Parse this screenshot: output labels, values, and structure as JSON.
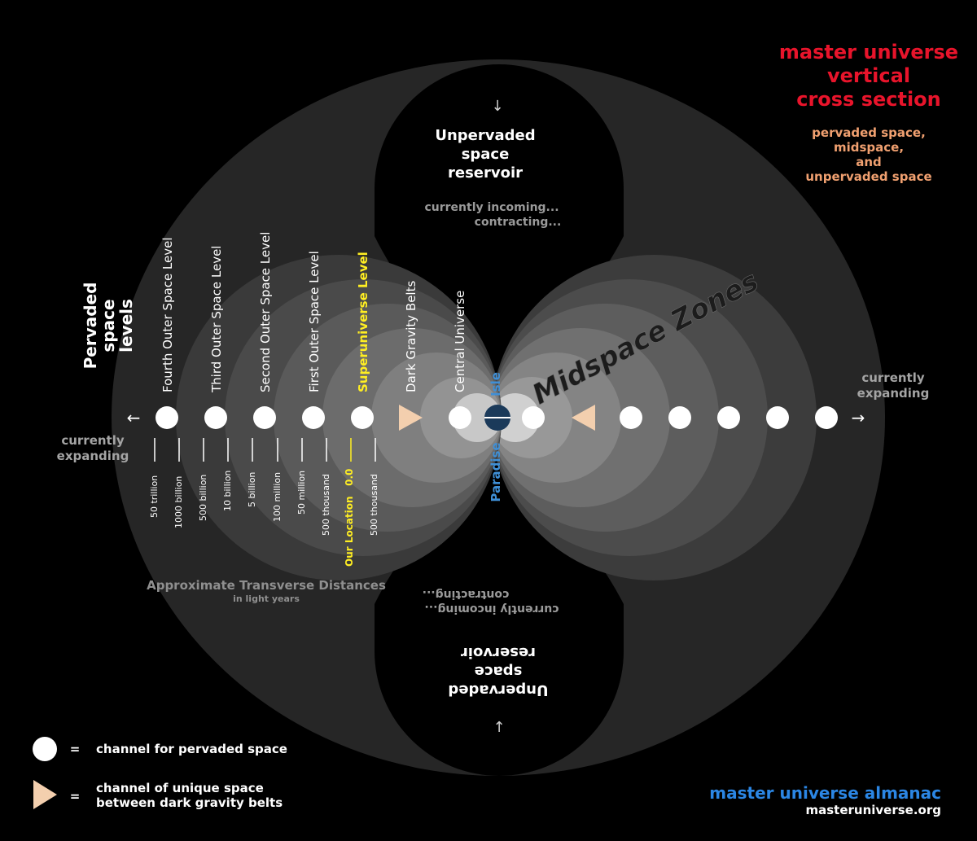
{
  "title": {
    "lines": [
      "master universe",
      "vertical",
      "cross section"
    ],
    "color": "#e8142b"
  },
  "subtitle": {
    "lines": [
      "pervaded space,",
      "midspace,",
      "and",
      "unpervaded space"
    ],
    "color": "#f0a070"
  },
  "pervaded_heading": [
    "Pervaded",
    "space",
    "levels"
  ],
  "levels": [
    "Fourth Outer Space Level",
    "Third Outer Space Level",
    "Second Outer Space Level",
    "First Outer Space Level",
    "Superuniverse Level",
    "Dark Gravity Belts",
    "Central Universe"
  ],
  "superuniverse_color": "#ffee22",
  "isle_label": "Isle",
  "paradise_label": "Paradise",
  "paradise_color": "#3f8fd6",
  "midspace_label": "Midspace Zones",
  "left_expanding": [
    "currently",
    "expanding"
  ],
  "right_expanding": [
    "currently",
    "expanding"
  ],
  "left_arrow_icon": "arrow-left",
  "right_arrow_icon": "arrow-right",
  "distances": [
    "50 trillion",
    "1000 billion",
    "500 billion",
    "10 billion",
    "5 billion",
    "100 million",
    "50 million",
    "500 thousand",
    "500 thousand"
  ],
  "our_location": "Our Location   0.0",
  "our_location_color": "#ffee22",
  "distance_caption": "Approximate Transverse Distances",
  "distance_caption_sub": "in light years",
  "top_reservoir": {
    "arrow_icon": "arrow-down",
    "lines": [
      "Unpervaded",
      "space",
      "reservoir"
    ],
    "status": [
      "currently incoming...",
      "contracting..."
    ]
  },
  "bottom_reservoir": {
    "arrow_icon": "arrow-up",
    "lines": [
      "Unpervaded",
      "space",
      "reservoir"
    ],
    "status": [
      "currently incoming...",
      "contracting..."
    ]
  },
  "legend": [
    {
      "symbol": "circle",
      "eq": "=",
      "lines": [
        "channel for pervaded space"
      ]
    },
    {
      "symbol": "triangle",
      "eq": "=",
      "lines": [
        "channel of unique space",
        "between dark gravity belts"
      ]
    }
  ],
  "triangle_color": "#f3cfae",
  "almanac": {
    "name": "master universe almanac",
    "url": "masteruniverse.org",
    "color": "#2b86e4"
  }
}
